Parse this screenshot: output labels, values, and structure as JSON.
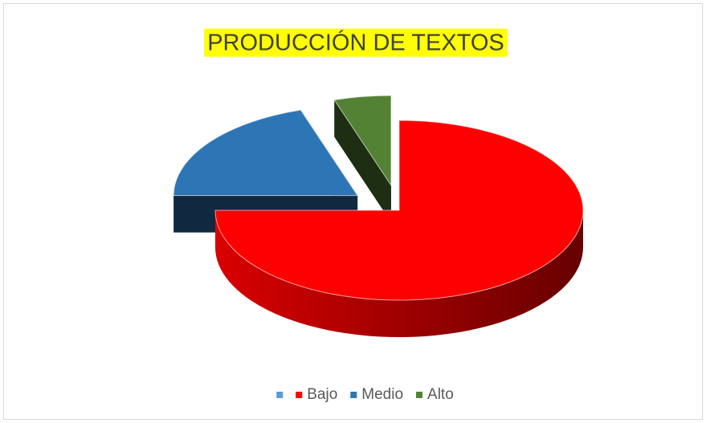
{
  "chart_data": {
    "type": "pie3d",
    "title": "PRODUCCIÓN DE TEXTOS",
    "categories": [
      null,
      "Bajo",
      "Medio",
      "Alto"
    ],
    "values": [
      null,
      75,
      20,
      5
    ],
    "colors": [
      "#5b9bd5",
      "#ff0000",
      "#2e75b6",
      "#548235"
    ],
    "legend": "bottom"
  }
}
